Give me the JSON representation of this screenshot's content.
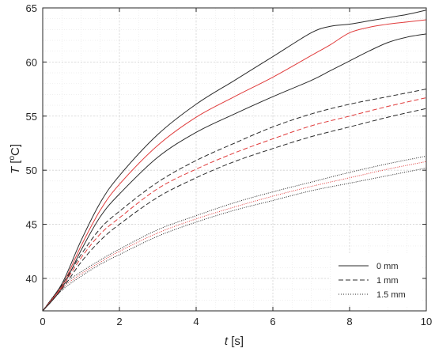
{
  "chart_data": {
    "type": "line",
    "xlabel": {
      "symbol": "t",
      "unit": " [s]"
    },
    "ylabel": {
      "symbol": "T",
      "unit_open": " [",
      "unit_sup": "o",
      "unit_close": "C]"
    },
    "xlim": [
      0,
      10
    ],
    "ylim": [
      37,
      65
    ],
    "xticks": [
      0,
      2,
      4,
      6,
      8,
      10
    ],
    "yticks": [
      40,
      45,
      50,
      55,
      60,
      65
    ],
    "x_minor_step": 0.5,
    "y_minor_step": 1,
    "grid": true,
    "legend_position": "bottom-right",
    "legend": [
      {
        "label": "0 mm",
        "dash": "solid"
      },
      {
        "label": "1 mm",
        "dash": "dashed"
      },
      {
        "label": "1.5 mm",
        "dash": "dotted"
      }
    ],
    "colors": {
      "black": "#2b2b2b",
      "red": "#e03c3c"
    },
    "series": [
      {
        "dash": "solid",
        "color": "black",
        "x": [
          0,
          0.5,
          1,
          1.5,
          2,
          3,
          4,
          5,
          6,
          7,
          7.5,
          8,
          8.5,
          9,
          9.5,
          10
        ],
        "y": [
          37,
          39.5,
          43.5,
          47,
          49.5,
          53.3,
          56.1,
          58.3,
          60.5,
          62.7,
          63.3,
          63.5,
          63.8,
          64.1,
          64.4,
          64.8
        ]
      },
      {
        "dash": "solid",
        "color": "red",
        "x": [
          0,
          0.5,
          1,
          1.5,
          2,
          3,
          4,
          5,
          6,
          7,
          7.5,
          8,
          8.5,
          9,
          9.5,
          10
        ],
        "y": [
          37,
          39.3,
          43,
          46.3,
          48.7,
          52.3,
          54.9,
          56.8,
          58.6,
          60.6,
          61.6,
          62.7,
          63.2,
          63.5,
          63.7,
          63.9
        ]
      },
      {
        "dash": "solid",
        "color": "black",
        "x": [
          0,
          0.5,
          1,
          1.5,
          2,
          3,
          4,
          5,
          6,
          7,
          7.5,
          8,
          8.5,
          9,
          9.5,
          10
        ],
        "y": [
          37,
          39.1,
          42.6,
          45.7,
          47.8,
          51.2,
          53.5,
          55.2,
          56.8,
          58.3,
          59.2,
          60.1,
          61,
          61.8,
          62.3,
          62.6
        ]
      },
      {
        "dash": "dashed",
        "color": "black",
        "x": [
          0,
          0.5,
          1,
          1.5,
          2,
          3,
          4,
          5,
          6,
          7,
          8,
          9,
          10
        ],
        "y": [
          37,
          39.4,
          42.2,
          44.6,
          46.2,
          48.9,
          50.9,
          52.5,
          54,
          55.2,
          56.1,
          56.8,
          57.5
        ]
      },
      {
        "dash": "dashed",
        "color": "red",
        "x": [
          0,
          0.5,
          1,
          1.5,
          2,
          3,
          4,
          5,
          6,
          7,
          8,
          9,
          10
        ],
        "y": [
          37,
          39.2,
          41.9,
          44.1,
          45.6,
          48.3,
          50.1,
          51.6,
          52.9,
          54.1,
          55,
          55.9,
          56.7
        ]
      },
      {
        "dash": "dashed",
        "color": "black",
        "x": [
          0,
          0.5,
          1,
          1.5,
          2,
          3,
          4,
          5,
          6,
          7,
          8,
          9,
          10
        ],
        "y": [
          37,
          39,
          41.5,
          43.5,
          45,
          47.5,
          49.3,
          50.8,
          52,
          53.1,
          54,
          54.9,
          55.7
        ]
      },
      {
        "dash": "dotted",
        "color": "black",
        "x": [
          0,
          0.5,
          1,
          1.5,
          2,
          3,
          4,
          5,
          6,
          7,
          8,
          9,
          10
        ],
        "y": [
          37,
          39.3,
          40.6,
          41.7,
          42.7,
          44.5,
          45.8,
          47,
          48,
          48.9,
          49.8,
          50.6,
          51.3
        ]
      },
      {
        "dash": "dotted",
        "color": "red",
        "x": [
          0,
          0.5,
          1,
          1.5,
          2,
          3,
          4,
          5,
          6,
          7,
          8,
          9,
          10
        ],
        "y": [
          37,
          39.1,
          40.4,
          41.5,
          42.5,
          44.2,
          45.5,
          46.6,
          47.6,
          48.5,
          49.3,
          50.1,
          50.8
        ]
      },
      {
        "dash": "dotted",
        "color": "black",
        "x": [
          0,
          0.5,
          1,
          1.5,
          2,
          3,
          4,
          5,
          6,
          7,
          8,
          9,
          10
        ],
        "y": [
          37,
          38.9,
          40.2,
          41.3,
          42.2,
          43.9,
          45.2,
          46.3,
          47.2,
          48.1,
          48.8,
          49.5,
          50.2
        ]
      }
    ]
  }
}
